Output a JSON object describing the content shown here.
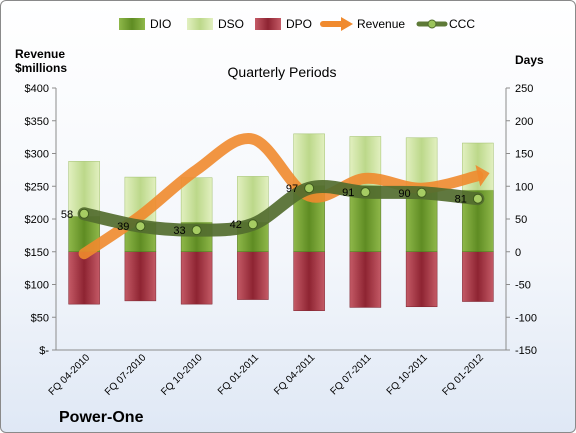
{
  "chart_data": {
    "type": "bar",
    "title": "Quarterly Periods",
    "company": "Power-One",
    "y_left_label_line1": "Revenue",
    "y_left_label_line2": "$millions",
    "y_right_label": "Days",
    "categories": [
      "FQ 04-2010",
      "FQ 07-2010",
      "FQ 10-2010",
      "FQ 01-2011",
      "FQ 04-2011",
      "FQ 07-2011",
      "FQ 10-2011",
      "FQ 01-2012"
    ],
    "legend": [
      "DIO",
      "DSO",
      "DPO",
      "Revenue",
      "CCC"
    ],
    "legend_position": "top",
    "y_left_ticks": [
      "$-",
      "$50",
      "$100",
      "$150",
      "$200",
      "$250",
      "$300",
      "$350",
      "$400"
    ],
    "y_left_range": [
      0,
      400
    ],
    "y_right_ticks": [
      "-150",
      "-100",
      "-50",
      "0",
      "50",
      "100",
      "150",
      "200",
      "250"
    ],
    "y_right_range": [
      -150,
      250
    ],
    "series": [
      {
        "name": "DIO",
        "axis": "days",
        "values": [
          54,
          44,
          45,
          45,
          101,
          101,
          98,
          94
        ]
      },
      {
        "name": "DSO",
        "axis": "days",
        "values": [
          84,
          70,
          68,
          70,
          79,
          75,
          76,
          72
        ]
      },
      {
        "name": "DPO",
        "axis": "days",
        "values": [
          -80,
          -75,
          -80,
          -73,
          -90,
          -85,
          -84,
          -76
        ]
      },
      {
        "name": "Revenue",
        "axis": "revenue",
        "values": [
          147,
          205,
          275,
          322,
          235,
          262,
          247,
          266
        ]
      },
      {
        "name": "CCC",
        "axis": "days",
        "values": [
          58,
          39,
          33,
          42,
          97,
          91,
          90,
          81
        ]
      }
    ],
    "data_labels": [
      "58",
      "39",
      "33",
      "42",
      "97",
      "91",
      "90",
      "81"
    ],
    "colors": {
      "DIO": "#7aa03a",
      "DSO": "#cde3a0",
      "DPO": "#b03a48",
      "Revenue": "#f08a2e",
      "CCC": "#5e7a37"
    },
    "grid": false
  }
}
